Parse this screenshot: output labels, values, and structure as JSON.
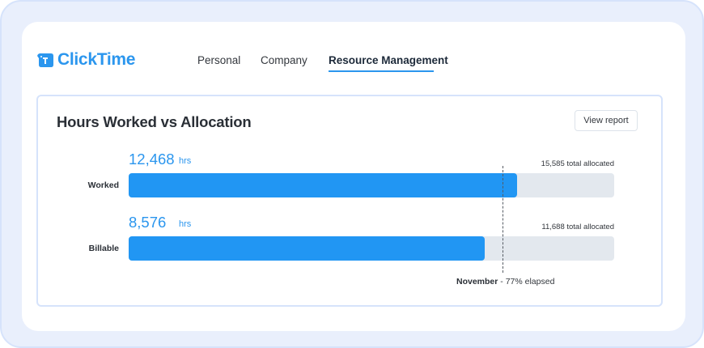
{
  "brand": {
    "name": "ClickTime",
    "color": "#2b96ee"
  },
  "nav": {
    "items": [
      {
        "label": "Personal",
        "active": false
      },
      {
        "label": "Company",
        "active": false
      },
      {
        "label": "Resource Management",
        "active": true
      }
    ]
  },
  "panel": {
    "title": "Hours Worked vs Allocation",
    "view_report_label": "View report",
    "unit_label": "hrs",
    "rows": [
      {
        "label": "Worked",
        "value_text": "12,468",
        "value": 12468,
        "allocated_text": "15,585 total allocated",
        "allocated": 15585
      },
      {
        "label": "Billable",
        "value_text": "8,576",
        "value": 8576,
        "allocated_text": "11,688 total allocated",
        "allocated": 11688
      }
    ],
    "elapsed": {
      "month": "November",
      "suffix": " - 77% elapsed",
      "percent": 77
    }
  },
  "colors": {
    "bar_fill": "#2196f3",
    "bar_track": "#e3e8ee",
    "accent": "#2b96ee"
  }
}
